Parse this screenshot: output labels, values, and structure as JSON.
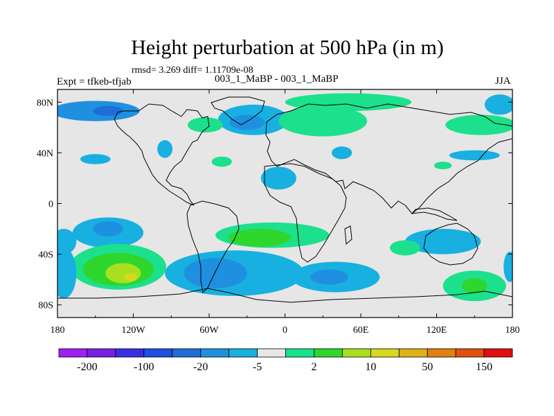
{
  "title": "Height perturbation at 500 hPa (in m)",
  "stats_line": "rmsd= 3.269 diff= 1.11709e-08",
  "left_label": "Expt = tfkeb-tfjab",
  "center_label": "003_1_MaBP - 003_1_MaBP",
  "right_label": "JJA",
  "chart_data": {
    "type": "heatmap",
    "projection": "cylindrical-equidistant",
    "x": {
      "range": [
        -180,
        180
      ],
      "ticks": [
        -180,
        -120,
        -60,
        0,
        60,
        120,
        180
      ],
      "tick_labels": [
        "180",
        "120W",
        "60W",
        "0",
        "60E",
        "120E",
        "180"
      ]
    },
    "y": {
      "range": [
        -90,
        90
      ],
      "ticks": [
        80,
        40,
        0,
        -40,
        -80
      ],
      "tick_labels": [
        "80N",
        "40N",
        "0",
        "40S",
        "80S"
      ]
    },
    "field_background": "#e6e6e6",
    "colorbar": {
      "colors": [
        "#a020f0",
        "#7a1fe0",
        "#3b2ee0",
        "#1f4fe0",
        "#1e6ed8",
        "#1f90e0",
        "#18b0e0",
        "#e6e6e6",
        "#1de08c",
        "#2ed62e",
        "#a8e020",
        "#d8d820",
        "#e0b018",
        "#e08010",
        "#e05010",
        "#e01010"
      ],
      "labels": [
        "-200",
        "-100",
        "-20",
        "-5",
        "2",
        "10",
        "50",
        "150"
      ]
    },
    "anomalies": [
      {
        "lon": -150,
        "lat": 73,
        "rlon": 35,
        "rlat": 8,
        "level": 5
      },
      {
        "lon": -140,
        "lat": 73,
        "rlon": 12,
        "rlat": 4,
        "level": 4
      },
      {
        "lon": -25,
        "lat": 66,
        "rlon": 28,
        "rlat": 12,
        "level": 6
      },
      {
        "lon": -30,
        "lat": 64,
        "rlon": 14,
        "rlat": 6,
        "level": 5
      },
      {
        "lon": 50,
        "lat": 80,
        "rlon": 50,
        "rlat": 7,
        "level": 8
      },
      {
        "lon": 30,
        "lat": 65,
        "rlon": 35,
        "rlat": 12,
        "level": 8
      },
      {
        "lon": 155,
        "lat": 62,
        "rlon": 28,
        "rlat": 8,
        "level": 8
      },
      {
        "lon": 170,
        "lat": 78,
        "rlon": 12,
        "rlat": 8,
        "level": 6
      },
      {
        "lon": -63,
        "lat": 62,
        "rlon": 14,
        "rlat": 6,
        "level": 8
      },
      {
        "lon": -95,
        "lat": 43,
        "rlon": 6,
        "rlat": 7,
        "level": 6
      },
      {
        "lon": -150,
        "lat": 35,
        "rlon": 12,
        "rlat": 4,
        "level": 6
      },
      {
        "lon": -50,
        "lat": 33,
        "rlon": 8,
        "rlat": 4,
        "level": 8
      },
      {
        "lon": -5,
        "lat": 20,
        "rlon": 14,
        "rlat": 9,
        "level": 6
      },
      {
        "lon": 45,
        "lat": 40,
        "rlon": 8,
        "rlat": 5,
        "level": 6
      },
      {
        "lon": 150,
        "lat": 38,
        "rlon": 20,
        "rlat": 4,
        "level": 6
      },
      {
        "lon": 125,
        "lat": 30,
        "rlon": 7,
        "rlat": 3,
        "level": 8
      },
      {
        "lon": -140,
        "lat": -23,
        "rlon": 28,
        "rlat": 12,
        "level": 6
      },
      {
        "lon": -140,
        "lat": -20,
        "rlon": 12,
        "rlat": 6,
        "level": 5
      },
      {
        "lon": -10,
        "lat": -25,
        "rlon": 45,
        "rlat": 10,
        "level": 8
      },
      {
        "lon": -20,
        "lat": -27,
        "rlon": 25,
        "rlat": 7,
        "level": 9
      },
      {
        "lon": -132,
        "lat": -50,
        "rlon": 38,
        "rlat": 18,
        "level": 8
      },
      {
        "lon": -132,
        "lat": -52,
        "rlon": 28,
        "rlat": 13,
        "level": 9
      },
      {
        "lon": -128,
        "lat": -55,
        "rlon": 14,
        "rlat": 8,
        "level": 10
      },
      {
        "lon": -122,
        "lat": -58,
        "rlon": 5,
        "rlat": 3,
        "level": 11
      },
      {
        "lon": -175,
        "lat": -30,
        "rlon": 10,
        "rlat": 10,
        "level": 6
      },
      {
        "lon": -175,
        "lat": -55,
        "rlon": 10,
        "rlat": 20,
        "level": 6
      },
      {
        "lon": -40,
        "lat": -55,
        "rlon": 55,
        "rlat": 18,
        "level": 6
      },
      {
        "lon": -55,
        "lat": -55,
        "rlon": 25,
        "rlat": 12,
        "level": 5
      },
      {
        "lon": 40,
        "lat": -58,
        "rlon": 35,
        "rlat": 12,
        "level": 6
      },
      {
        "lon": 35,
        "lat": -58,
        "rlon": 15,
        "rlat": 6,
        "level": 5
      },
      {
        "lon": 125,
        "lat": -30,
        "rlon": 30,
        "rlat": 10,
        "level": 6
      },
      {
        "lon": 95,
        "lat": -35,
        "rlon": 12,
        "rlat": 6,
        "level": 8
      },
      {
        "lon": 150,
        "lat": -65,
        "rlon": 25,
        "rlat": 12,
        "level": 8
      },
      {
        "lon": 150,
        "lat": -65,
        "rlon": 10,
        "rlat": 6,
        "level": 9
      },
      {
        "lon": 178,
        "lat": -50,
        "rlon": 5,
        "rlat": 12,
        "level": 6
      }
    ]
  }
}
